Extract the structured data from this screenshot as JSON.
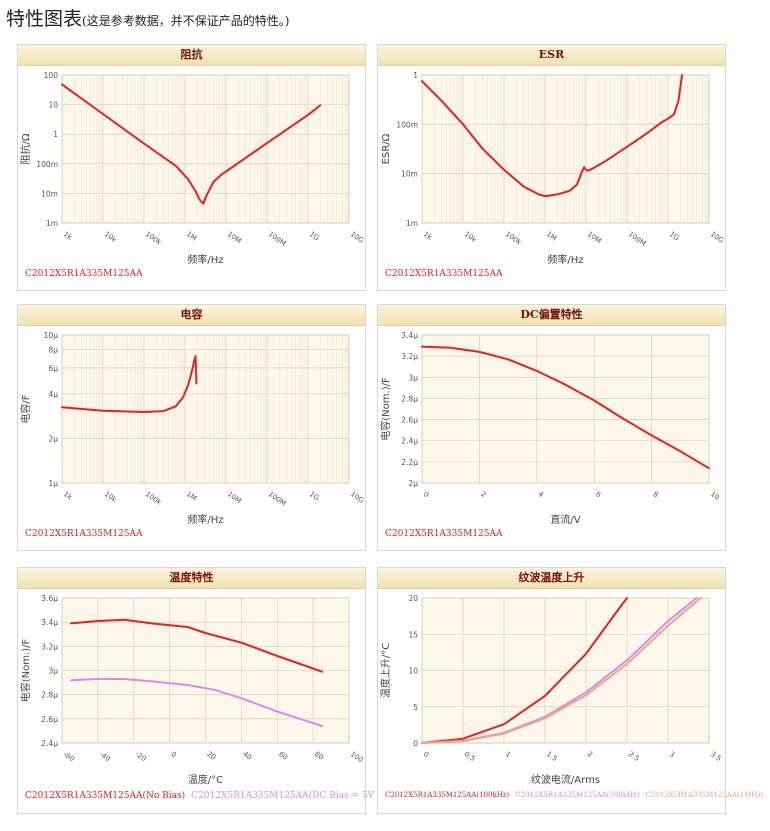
{
  "page_title": "特性图表",
  "page_subtitle": "(这是参考数据，并不保证产品的特性。)",
  "colors": {
    "red": "#e82020",
    "pink": "#d98ae6",
    "plot_bg": "#fbf7e9"
  },
  "chart_data": [
    {
      "id": "impedance",
      "type": "line",
      "title": "阻抗",
      "xlabel": "频率/Hz",
      "ylabel": "阻抗/Ω",
      "xscale": "log",
      "yscale": "log",
      "xlim": [
        1000,
        10000000000
      ],
      "ylim": [
        0.001,
        100
      ],
      "xticks": [
        {
          "v": 1000,
          "label": "1k"
        },
        {
          "v": 10000,
          "label": "10k"
        },
        {
          "v": 100000,
          "label": "100k"
        },
        {
          "v": 1000000,
          "label": "1M"
        },
        {
          "v": 10000000,
          "label": "10M"
        },
        {
          "v": 100000000,
          "label": "100M"
        },
        {
          "v": 1000000000,
          "label": "1G"
        },
        {
          "v": 10000000000,
          "label": "10G"
        }
      ],
      "yticks": [
        {
          "v": 0.001,
          "label": "1m"
        },
        {
          "v": 0.01,
          "label": "10m"
        },
        {
          "v": 0.1,
          "label": "100m"
        },
        {
          "v": 1,
          "label": "1"
        },
        {
          "v": 10,
          "label": "10"
        },
        {
          "v": 100,
          "label": "100"
        }
      ],
      "series": [
        {
          "name": "C2012X5R1A335M125AA",
          "color": "#e82020",
          "points": [
            [
              1000,
              48
            ],
            [
              10000,
              4.8
            ],
            [
              100000,
              0.48
            ],
            [
              600000,
              0.085
            ],
            [
              1200000,
              0.03
            ],
            [
              1800000,
              0.012
            ],
            [
              2300000,
              0.006
            ],
            [
              2800000,
              0.0045
            ],
            [
              3400000,
              0.009
            ],
            [
              5000000,
              0.025
            ],
            [
              8000000,
              0.045
            ],
            [
              10000000,
              0.055
            ],
            [
              100000000,
              0.5
            ],
            [
              1000000000,
              4.5
            ],
            [
              2000000000,
              9.5
            ]
          ]
        }
      ],
      "legend": [
        {
          "label": "C2012X5R1A335M125AA",
          "color": "#e82020"
        }
      ]
    },
    {
      "id": "esr",
      "type": "line",
      "title": "ESR",
      "xlabel": "频率/Hz",
      "ylabel": "ESR/Ω",
      "xscale": "log",
      "yscale": "log",
      "xlim": [
        1000,
        10000000000
      ],
      "ylim": [
        0.001,
        1
      ],
      "xticks": [
        {
          "v": 1000,
          "label": "1k"
        },
        {
          "v": 10000,
          "label": "10k"
        },
        {
          "v": 100000,
          "label": "100k"
        },
        {
          "v": 1000000,
          "label": "1M"
        },
        {
          "v": 10000000,
          "label": "10M"
        },
        {
          "v": 100000000,
          "label": "100M"
        },
        {
          "v": 1000000000,
          "label": "1G"
        },
        {
          "v": 10000000000,
          "label": "10G"
        }
      ],
      "yticks": [
        {
          "v": 0.001,
          "label": "1m"
        },
        {
          "v": 0.01,
          "label": "10m"
        },
        {
          "v": 0.1,
          "label": "100m"
        },
        {
          "v": 1,
          "label": "1"
        }
      ],
      "series": [
        {
          "name": "C2012X5R1A335M125AA",
          "color": "#e82020",
          "points": [
            [
              1000,
              0.75
            ],
            [
              3000,
              0.3
            ],
            [
              10000,
              0.1
            ],
            [
              30000,
              0.032
            ],
            [
              100000,
              0.012
            ],
            [
              300000,
              0.0055
            ],
            [
              700000,
              0.0038
            ],
            [
              1000000,
              0.0035
            ],
            [
              2000000,
              0.0038
            ],
            [
              4000000,
              0.0045
            ],
            [
              6000000,
              0.006
            ],
            [
              8000000,
              0.011
            ],
            [
              9000000,
              0.0135
            ],
            [
              10000000,
              0.012
            ],
            [
              11000000,
              0.0115
            ],
            [
              14000000,
              0.0125
            ],
            [
              30000000,
              0.018
            ],
            [
              100000000,
              0.035
            ],
            [
              300000000,
              0.065
            ],
            [
              700000000,
              0.11
            ],
            [
              1000000000,
              0.13
            ],
            [
              1400000000,
              0.16
            ],
            [
              1800000000,
              0.3
            ],
            [
              2200000000,
              1
            ]
          ]
        }
      ],
      "legend": [
        {
          "label": "C2012X5R1A335M125AA",
          "color": "#e82020"
        }
      ]
    },
    {
      "id": "capacitance",
      "type": "line",
      "title": "电容",
      "xlabel": "频率/Hz",
      "ylabel": "电容/F",
      "xscale": "log",
      "yscale": "log",
      "xlim": [
        1000,
        10000000000
      ],
      "ylim": [
        1,
        10
      ],
      "xticks": [
        {
          "v": 1000,
          "label": "1k"
        },
        {
          "v": 10000,
          "label": "10k"
        },
        {
          "v": 100000,
          "label": "100k"
        },
        {
          "v": 1000000,
          "label": "1M"
        },
        {
          "v": 10000000,
          "label": "10M"
        },
        {
          "v": 100000000,
          "label": "100M"
        },
        {
          "v": 1000000000,
          "label": "1G"
        },
        {
          "v": 10000000000,
          "label": "10G"
        }
      ],
      "yticks": [
        {
          "v": 1,
          "label": "1μ"
        },
        {
          "v": 2,
          "label": "2μ"
        },
        {
          "v": 4,
          "label": "4μ"
        },
        {
          "v": 6,
          "label": "6μ"
        },
        {
          "v": 8,
          "label": "8μ"
        },
        {
          "v": 10,
          "label": "10μ"
        }
      ],
      "series": [
        {
          "name": "C2012X5R1A335M125AA",
          "color": "#e82020",
          "points": [
            [
              1000,
              3.25
            ],
            [
              10000,
              3.08
            ],
            [
              100000,
              3.02
            ],
            [
              300000,
              3.06
            ],
            [
              600000,
              3.3
            ],
            [
              900000,
              3.8
            ],
            [
              1200000,
              4.6
            ],
            [
              1500000,
              5.8
            ],
            [
              1700000,
              6.8
            ],
            [
              1800000,
              7.2
            ],
            [
              1850000,
              6
            ],
            [
              1900000,
              4.7
            ]
          ]
        }
      ],
      "legend": [
        {
          "label": "C2012X5R1A335M125AA",
          "color": "#e82020"
        }
      ]
    },
    {
      "id": "dc_bias",
      "type": "line",
      "title": "DC偏置特性",
      "xlabel": "直流/V",
      "ylabel": "电容(Nom.)/F",
      "xscale": "linear",
      "yscale": "linear",
      "xlim": [
        0,
        10
      ],
      "ylim": [
        2,
        3.4
      ],
      "xticks": [
        {
          "v": 0,
          "label": "0"
        },
        {
          "v": 2,
          "label": "2"
        },
        {
          "v": 4,
          "label": "4"
        },
        {
          "v": 6,
          "label": "6"
        },
        {
          "v": 8,
          "label": "8"
        },
        {
          "v": 10,
          "label": "10"
        }
      ],
      "yticks": [
        {
          "v": 2,
          "label": "2μ"
        },
        {
          "v": 2.2,
          "label": "2.2μ"
        },
        {
          "v": 2.4,
          "label": "2.4μ"
        },
        {
          "v": 2.6,
          "label": "2.6μ"
        },
        {
          "v": 2.8,
          "label": "2.8μ"
        },
        {
          "v": 3,
          "label": "3μ"
        },
        {
          "v": 3.2,
          "label": "3.2μ"
        },
        {
          "v": 3.4,
          "label": "3.4μ"
        }
      ],
      "series": [
        {
          "name": "C2012X5R1A335M125AA",
          "color": "#e82020",
          "points": [
            [
              0,
              3.29
            ],
            [
              1,
              3.28
            ],
            [
              2,
              3.24
            ],
            [
              3,
              3.17
            ],
            [
              4,
              3.06
            ],
            [
              5,
              2.93
            ],
            [
              6,
              2.78
            ],
            [
              7,
              2.61
            ],
            [
              8,
              2.45
            ],
            [
              9,
              2.3
            ],
            [
              10,
              2.14
            ]
          ]
        }
      ],
      "legend": [
        {
          "label": "C2012X5R1A335M125AA",
          "color": "#e82020"
        }
      ]
    },
    {
      "id": "temperature",
      "type": "line",
      "title": "温度特性",
      "xlabel": "温度/°C",
      "ylabel": "电容(Nom.)/F",
      "xscale": "linear",
      "yscale": "linear",
      "xlim": [
        -60,
        100
      ],
      "ylim": [
        2.4,
        3.6
      ],
      "xticks": [
        {
          "v": -60,
          "label": "-60"
        },
        {
          "v": -40,
          "label": "-40"
        },
        {
          "v": -20,
          "label": "-20"
        },
        {
          "v": 0,
          "label": "0"
        },
        {
          "v": 20,
          "label": "20"
        },
        {
          "v": 40,
          "label": "40"
        },
        {
          "v": 60,
          "label": "60"
        },
        {
          "v": 80,
          "label": "80"
        },
        {
          "v": 100,
          "label": "100"
        }
      ],
      "yticks": [
        {
          "v": 2.4,
          "label": "2.4μ"
        },
        {
          "v": 2.6,
          "label": "2.6μ"
        },
        {
          "v": 2.8,
          "label": "2.8μ"
        },
        {
          "v": 3,
          "label": "3μ"
        },
        {
          "v": 3.2,
          "label": "3.2μ"
        },
        {
          "v": 3.4,
          "label": "3.4μ"
        },
        {
          "v": 3.6,
          "label": "3.6μ"
        }
      ],
      "series": [
        {
          "name": "C2012X5R1A335M125AA(No Bias)",
          "color": "#e82020",
          "points": [
            [
              -55,
              3.39
            ],
            [
              -40,
              3.41
            ],
            [
              -25,
              3.42
            ],
            [
              -10,
              3.39
            ],
            [
              10,
              3.36
            ],
            [
              20,
              3.31
            ],
            [
              40,
              3.23
            ],
            [
              60,
              3.12
            ],
            [
              85,
              2.99
            ]
          ]
        },
        {
          "name": "C2012X5R1A335M125AA(DC Bias = 5V )",
          "color": "#d98ae6",
          "points": [
            [
              -55,
              2.92
            ],
            [
              -40,
              2.93
            ],
            [
              -25,
              2.93
            ],
            [
              -10,
              2.91
            ],
            [
              10,
              2.88
            ],
            [
              25,
              2.84
            ],
            [
              40,
              2.77
            ],
            [
              60,
              2.66
            ],
            [
              85,
              2.54
            ]
          ]
        }
      ],
      "legend": [
        {
          "label": "C2012X5R1A335M125AA(No Bias)",
          "color": "#e82020"
        },
        {
          "label": "C2012X5R1A335M125AA(DC Bias = 5V )",
          "color": "#d98ae6"
        }
      ]
    },
    {
      "id": "ripple",
      "type": "line",
      "title": "纹波温度上升",
      "xlabel": "纹波电流/Arms",
      "ylabel": "温度上升/°C",
      "xscale": "linear",
      "yscale": "linear",
      "xlim": [
        0,
        3.5
      ],
      "ylim": [
        0,
        20
      ],
      "xticks": [
        {
          "v": 0,
          "label": "0"
        },
        {
          "v": 0.5,
          "label": "0.5"
        },
        {
          "v": 1,
          "label": "1"
        },
        {
          "v": 1.5,
          "label": "1.5"
        },
        {
          "v": 2,
          "label": "2"
        },
        {
          "v": 2.5,
          "label": "2.5"
        },
        {
          "v": 3,
          "label": "3"
        },
        {
          "v": 3.5,
          "label": "3.5"
        }
      ],
      "yticks": [
        {
          "v": 0,
          "label": "0"
        },
        {
          "v": 5,
          "label": "5"
        },
        {
          "v": 10,
          "label": "10"
        },
        {
          "v": 15,
          "label": "15"
        },
        {
          "v": 20,
          "label": "20"
        }
      ],
      "series": [
        {
          "name": "C2012X5R1A335M125AA(100kHz)",
          "color": "#e82020",
          "points": [
            [
              0,
              0
            ],
            [
              0.5,
              0.6
            ],
            [
              1,
              2.6
            ],
            [
              1.5,
              6.5
            ],
            [
              2,
              12.3
            ],
            [
              2.4,
              18.5
            ],
            [
              2.5,
              20
            ]
          ]
        },
        {
          "name": "C2012X5R1A335M125AA(500kHz)",
          "color": "#d98ae6",
          "points": [
            [
              0,
              0
            ],
            [
              0.5,
              0.3
            ],
            [
              1,
              1.4
            ],
            [
              1.5,
              3.6
            ],
            [
              2,
              7
            ],
            [
              2.5,
              11.4
            ],
            [
              3,
              16.8
            ],
            [
              3.35,
              20
            ]
          ]
        },
        {
          "name": "C2012X5R1A335M125AA(1MHz)",
          "color": "#eaa68a",
          "points": [
            [
              0,
              0
            ],
            [
              0.5,
              0.28
            ],
            [
              1,
              1.3
            ],
            [
              1.5,
              3.4
            ],
            [
              2,
              6.6
            ],
            [
              2.5,
              10.9
            ],
            [
              3,
              16.2
            ],
            [
              3.4,
              20
            ]
          ]
        }
      ],
      "legend": [
        {
          "label": "C2012X5R1A335M125AA(100kHz)",
          "color": "#e82020"
        },
        {
          "label": "C2012X5R1A335M125AA(500kHz)",
          "color": "#d98ae6"
        },
        {
          "label": "C2012X5R1A335M125AA(1MHz)",
          "color": "#eaa68a"
        }
      ]
    }
  ]
}
